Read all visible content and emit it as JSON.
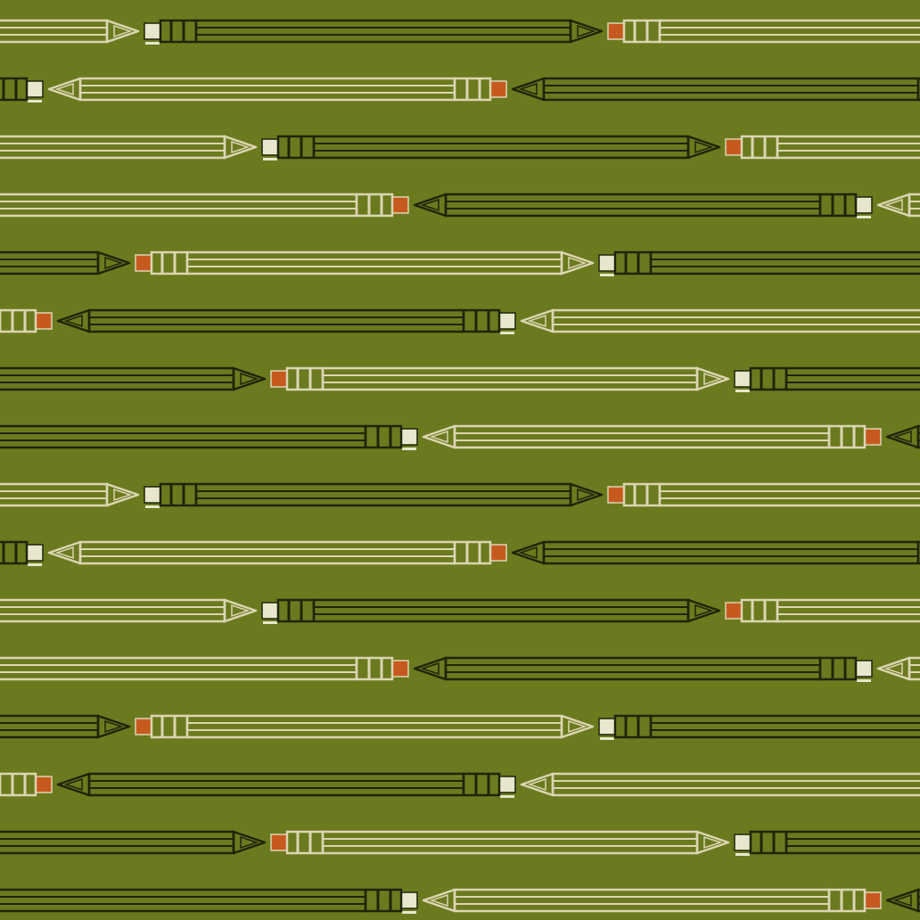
{
  "pattern": {
    "motif": "pencils",
    "colors": {
      "background": "#6b7a1e",
      "light_pencil": "#dcd5b2",
      "dark_pencil": "#1e2508",
      "orange_eraser": "#c65a1e",
      "white_eraser": "#e8e6cc"
    },
    "row_directions": [
      "right",
      "left",
      "right",
      "left",
      "right",
      "left",
      "right",
      "left"
    ]
  }
}
